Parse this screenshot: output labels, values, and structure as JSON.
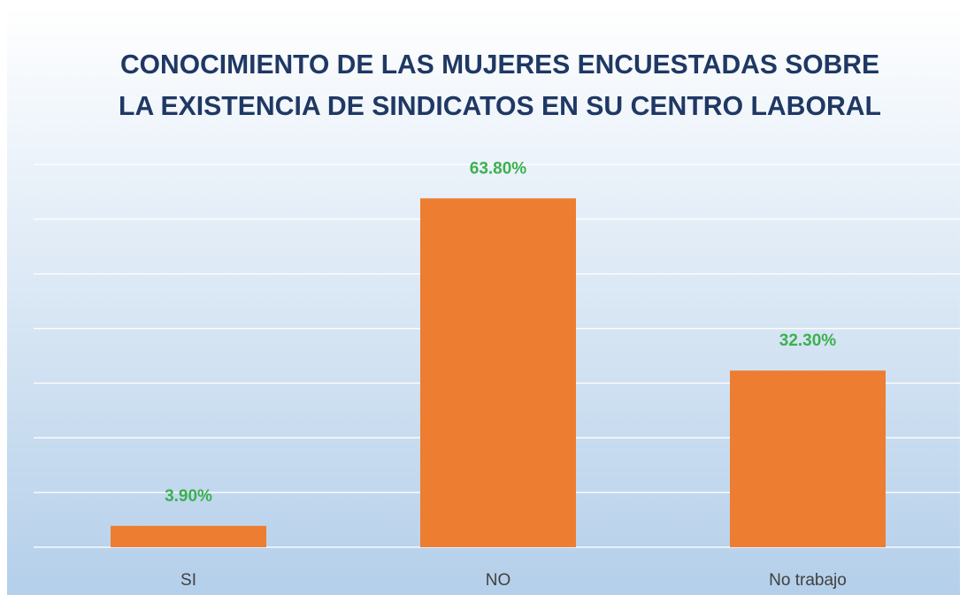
{
  "chart_data": {
    "type": "bar",
    "title": [
      "CONOCIMIENTO DE LAS MUJERES ENCUESTADAS SOBRE",
      "LA EXISTENCIA DE SINDICATOS EN SU CENTRO LABORAL"
    ],
    "categories": [
      "SI",
      "NO",
      "No trabajo"
    ],
    "values": [
      3.9,
      63.8,
      32.3
    ],
    "value_labels": [
      "3.90%",
      "63.80%",
      "32.30%"
    ],
    "color": "#ed7d31",
    "ylim": [
      0,
      70
    ],
    "yticks": [
      0,
      10,
      20,
      30,
      40,
      50,
      60,
      70
    ],
    "grid": true
  }
}
